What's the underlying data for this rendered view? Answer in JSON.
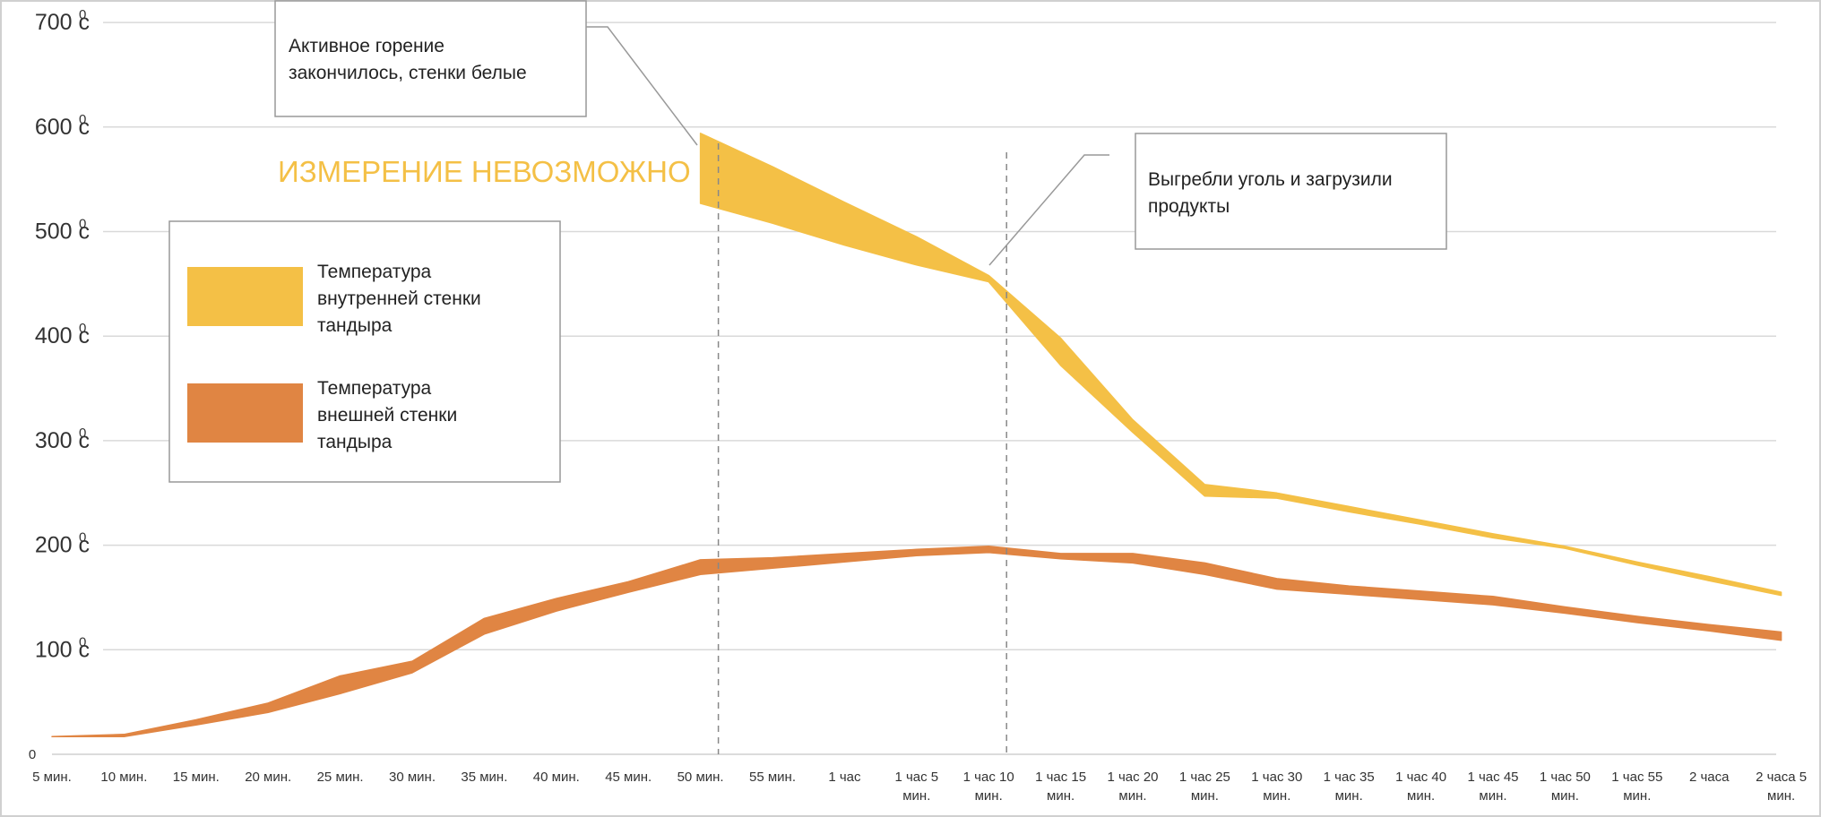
{
  "chart_data": {
    "type": "area",
    "categories": [
      "5 мин.",
      "10 мин.",
      "15  мин.",
      "20  мин.",
      "25 мин.",
      "30 мин.",
      "35 мин.",
      "40 мин.",
      "45 мин.",
      "50 мин.",
      "55 мин.",
      "1 час",
      "1 час 5 мин.",
      "1 час 10 мин.",
      "1 час 15 мин.",
      "1 час 20 мин.",
      "1 час 25 мин.",
      "1 час 30 мин.",
      "1 час 35 мин.",
      "1 час 40 мин.",
      "1 час 45 мин.",
      "1 час 50 мин.",
      "1 час 55 мин.",
      "2 часа",
      "2 часа 5 мин."
    ],
    "y_ticks": [
      {
        "value": 0,
        "label": "0",
        "sup": ""
      },
      {
        "value": 100,
        "label": "100 с",
        "sup": "0"
      },
      {
        "value": 200,
        "label": "200 с",
        "sup": "0"
      },
      {
        "value": 300,
        "label": "300 с",
        "sup": "0"
      },
      {
        "value": 400,
        "label": "400 с",
        "sup": "0"
      },
      {
        "value": 500,
        "label": "500 с",
        "sup": "0"
      },
      {
        "value": 600,
        "label": "600 с",
        "sup": "0"
      },
      {
        "value": 700,
        "label": "700 с",
        "sup": "0"
      }
    ],
    "ylim": [
      0,
      700
    ],
    "grid": true,
    "series": [
      {
        "name": "Температура внутренней стенки тандыра",
        "color": "#F4C046",
        "start_index": 9,
        "lower": [
          527,
          508,
          487,
          468,
          452,
          372,
          308,
          247,
          245,
          232,
          220,
          207,
          197,
          181,
          166,
          152
        ],
        "upper": [
          594,
          562,
          528,
          495,
          458,
          398,
          320,
          258,
          250,
          237,
          224,
          211,
          199,
          184,
          170,
          155
        ]
      },
      {
        "name": "Температура внешней стенки тандыра",
        "color": "#E08543",
        "start_index": 0,
        "lower": [
          17,
          17,
          28,
          40,
          58,
          78,
          115,
          137,
          155,
          172,
          178,
          184,
          190,
          193,
          187,
          183,
          172,
          158,
          153,
          148,
          143,
          135,
          126,
          118,
          109
        ],
        "upper": [
          17,
          19,
          33,
          49,
          75,
          89,
          130,
          149,
          165,
          186,
          188,
          192,
          196,
          199,
          192,
          192,
          183,
          168,
          161,
          156,
          151,
          141,
          132,
          124,
          117
        ]
      }
    ],
    "vlines": [
      9,
      13
    ],
    "annotations": {
      "measure_impossible": "ИЗМЕРЕНИЕ НЕВОЗМОЖНО",
      "callout1": [
        "Активное горение",
        "закончилось, стенки белые"
      ],
      "callout2": [
        "Выгребли уголь и загрузили",
        "продукты"
      ]
    },
    "legend": {
      "position": "left",
      "items": [
        {
          "lines": [
            "Температура",
            "внутренней стенки",
            "тандыра"
          ],
          "color": "#F4C046"
        },
        {
          "lines": [
            "Температура",
            "внешней стенки",
            "тандыра"
          ],
          "color": "#E08543"
        }
      ]
    }
  }
}
